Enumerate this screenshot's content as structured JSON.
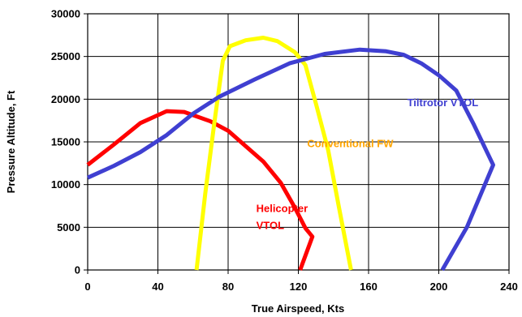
{
  "chart_data": {
    "type": "line",
    "title": "",
    "xlabel": "True Airspeed, Kts",
    "ylabel": "Pressure Altitude, Ft",
    "xlim": [
      0,
      240
    ],
    "ylim": [
      0,
      30000
    ],
    "xticks": [
      0,
      40,
      80,
      120,
      160,
      200,
      240
    ],
    "yticks": [
      0,
      5000,
      10000,
      15000,
      20000,
      25000,
      30000
    ],
    "xtick_labels": [
      "0",
      "40",
      "80",
      "120",
      "160",
      "200",
      "240"
    ],
    "ytick_labels": [
      "0",
      "5000",
      "10000",
      "15000",
      "20000",
      "25000",
      "30000"
    ],
    "grid": true,
    "legend": "none",
    "series": [
      {
        "name": "Helicopter VTOL",
        "color": "#ff0000",
        "points": [
          [
            0,
            12300
          ],
          [
            15,
            14700
          ],
          [
            30,
            17200
          ],
          [
            45,
            18600
          ],
          [
            55,
            18500
          ],
          [
            70,
            17400
          ],
          [
            80,
            16300
          ],
          [
            90,
            14500
          ],
          [
            100,
            12700
          ],
          [
            110,
            10200
          ],
          [
            118,
            7300
          ],
          [
            124,
            4900
          ],
          [
            128,
            3900
          ],
          [
            121,
            0
          ]
        ]
      },
      {
        "name": "Conventional FW",
        "color": "#ffff00",
        "points": [
          [
            62,
            0
          ],
          [
            67,
            9000
          ],
          [
            72,
            17000
          ],
          [
            77,
            24500
          ],
          [
            81,
            26200
          ],
          [
            90,
            26900
          ],
          [
            100,
            27200
          ],
          [
            108,
            26800
          ],
          [
            118,
            25500
          ],
          [
            124,
            24000
          ],
          [
            130,
            19500
          ],
          [
            137,
            14000
          ],
          [
            143,
            7500
          ],
          [
            150,
            0
          ]
        ]
      },
      {
        "name": "Tiltrotor VTOL",
        "color": "#3f3fd1",
        "points": [
          [
            0,
            10800
          ],
          [
            15,
            12200
          ],
          [
            30,
            13800
          ],
          [
            45,
            15800
          ],
          [
            60,
            18300
          ],
          [
            75,
            20300
          ],
          [
            95,
            22300
          ],
          [
            115,
            24200
          ],
          [
            135,
            25300
          ],
          [
            155,
            25800
          ],
          [
            170,
            25600
          ],
          [
            180,
            25200
          ],
          [
            190,
            24200
          ],
          [
            200,
            22800
          ],
          [
            210,
            21000
          ],
          [
            220,
            17000
          ],
          [
            231,
            12300
          ],
          [
            216,
            5000
          ],
          [
            202,
            0
          ]
        ]
      }
    ],
    "labels": [
      {
        "text": "Helicopter",
        "series": 0,
        "x": 96,
        "y": 6800
      },
      {
        "text": "VTOL",
        "series": 0,
        "x": 96,
        "y": 4800
      },
      {
        "text": "Conventional FW",
        "series": 1,
        "x": 125,
        "y": 14400
      },
      {
        "text": "Tiltrotor VTOL",
        "series": 2,
        "x": 182,
        "y": 19200
      }
    ]
  }
}
